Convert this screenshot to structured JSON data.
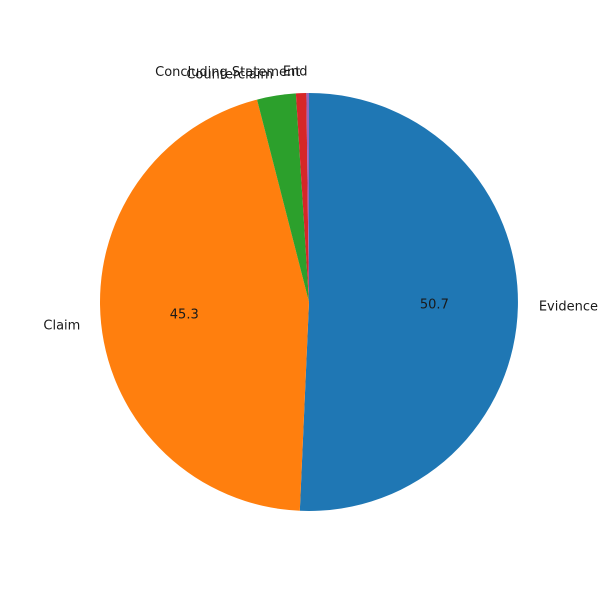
{
  "chart_data": {
    "type": "pie",
    "title": "",
    "slices": [
      {
        "label": "Evidence",
        "value": 50.7,
        "pct_label": "50.7",
        "color": "#1f77b4"
      },
      {
        "label": "Claim",
        "value": 45.3,
        "pct_label": "45.3",
        "color": "#ff7f0e"
      },
      {
        "label": "Counterclaim",
        "value": 3.0,
        "pct_label": "",
        "color": "#2ca02c"
      },
      {
        "label": "Concluding Statement",
        "value": 0.8,
        "pct_label": "",
        "color": "#d62728"
      },
      {
        "label": "End",
        "value": 0.2,
        "pct_label": "",
        "color": "#9467bd"
      }
    ],
    "start_angle_deg": 90,
    "direction": "clockwise",
    "legend": "none"
  }
}
